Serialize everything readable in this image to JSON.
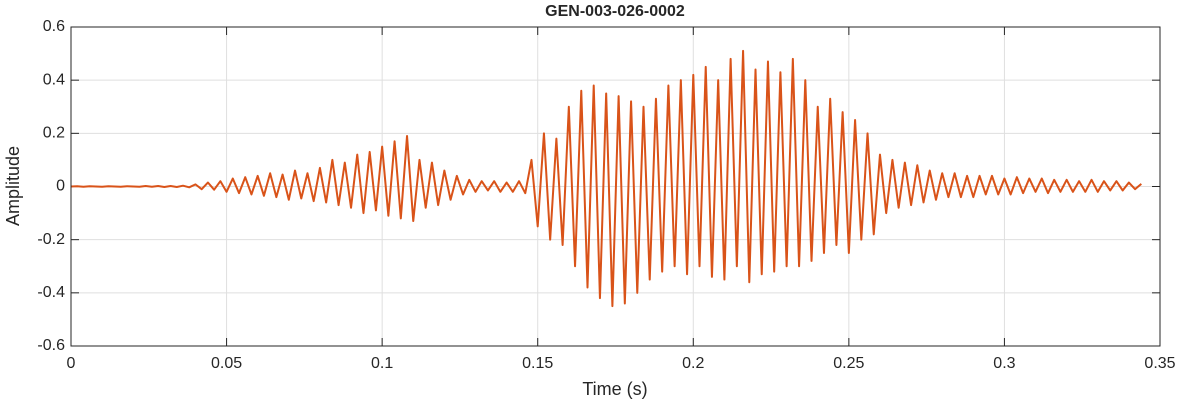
{
  "chart_data": {
    "type": "line",
    "title": "GEN-003-026-0002",
    "x_label": "Time (s)",
    "y_label": "Amplitude",
    "xlim": [
      0,
      0.35
    ],
    "xticks": [
      0,
      0.05,
      0.1,
      0.15,
      0.2,
      0.25,
      0.3,
      0.35
    ],
    "ylim": [
      -0.6,
      0.6
    ],
    "yticks": [
      -0.6,
      -0.4,
      -0.2,
      0,
      0.2,
      0.4,
      0.6
    ],
    "grid": true,
    "series": [
      {
        "color": "#D95319",
        "x": [
          0,
          0.002,
          0.004,
          0.006,
          0.008,
          0.01,
          0.012,
          0.014,
          0.016,
          0.018,
          0.02,
          0.022,
          0.024,
          0.026,
          0.028,
          0.03,
          0.032,
          0.034,
          0.036,
          0.038,
          0.04,
          0.042,
          0.044,
          0.046,
          0.048,
          0.05,
          0.052,
          0.054,
          0.056,
          0.058,
          0.06,
          0.062,
          0.064,
          0.066,
          0.068,
          0.07,
          0.072,
          0.074,
          0.076,
          0.078,
          0.08,
          0.082,
          0.084,
          0.086,
          0.088,
          0.09,
          0.092,
          0.094,
          0.096,
          0.098,
          0.1,
          0.102,
          0.104,
          0.106,
          0.108,
          0.11,
          0.112,
          0.114,
          0.116,
          0.118,
          0.12,
          0.122,
          0.124,
          0.126,
          0.128,
          0.13,
          0.132,
          0.134,
          0.136,
          0.138,
          0.14,
          0.142,
          0.144,
          0.146,
          0.148,
          0.15,
          0.152,
          0.154,
          0.156,
          0.158,
          0.16,
          0.162,
          0.164,
          0.166,
          0.168,
          0.17,
          0.172,
          0.174,
          0.176,
          0.178,
          0.18,
          0.182,
          0.184,
          0.186,
          0.188,
          0.19,
          0.192,
          0.194,
          0.196,
          0.198,
          0.2,
          0.202,
          0.204,
          0.206,
          0.208,
          0.21,
          0.212,
          0.214,
          0.216,
          0.218,
          0.22,
          0.222,
          0.224,
          0.226,
          0.228,
          0.23,
          0.232,
          0.234,
          0.236,
          0.238,
          0.24,
          0.242,
          0.244,
          0.246,
          0.248,
          0.25,
          0.252,
          0.254,
          0.256,
          0.258,
          0.26,
          0.262,
          0.264,
          0.266,
          0.268,
          0.27,
          0.272,
          0.274,
          0.276,
          0.278,
          0.28,
          0.282,
          0.284,
          0.286,
          0.288,
          0.29,
          0.292,
          0.294,
          0.296,
          0.298,
          0.3,
          0.302,
          0.304,
          0.306,
          0.308,
          0.31,
          0.312,
          0.314,
          0.316,
          0.318,
          0.32,
          0.322,
          0.324,
          0.326,
          0.328,
          0.33,
          0.332,
          0.334,
          0.336,
          0.338,
          0.34,
          0.342,
          0.344
        ],
        "values": [
          0,
          0.001,
          -0.001,
          0.001,
          0,
          -0.001,
          0.001,
          0,
          -0.001,
          0.001,
          0,
          -0.001,
          0.002,
          -0.001,
          0.002,
          -0.002,
          0.002,
          -0.002,
          0.003,
          -0.003,
          0.008,
          -0.01,
          0.015,
          -0.012,
          0.02,
          -0.02,
          0.03,
          -0.025,
          0.035,
          -0.03,
          0.04,
          -0.035,
          0.05,
          -0.04,
          0.045,
          -0.05,
          0.06,
          -0.045,
          0.05,
          -0.055,
          0.07,
          -0.06,
          0.1,
          -0.07,
          0.09,
          -0.08,
          0.12,
          -0.1,
          0.13,
          -0.09,
          0.15,
          -0.11,
          0.17,
          -0.12,
          0.19,
          -0.13,
          0.1,
          -0.08,
          0.09,
          -0.07,
          0.06,
          -0.05,
          0.04,
          -0.03,
          0.025,
          -0.02,
          0.02,
          -0.015,
          0.02,
          -0.02,
          0.015,
          -0.02,
          0.02,
          -0.025,
          0.1,
          -0.15,
          0.2,
          -0.2,
          0.18,
          -0.22,
          0.3,
          -0.3,
          0.36,
          -0.38,
          0.38,
          -0.42,
          0.35,
          -0.45,
          0.34,
          -0.44,
          0.32,
          -0.4,
          0.3,
          -0.35,
          0.33,
          -0.32,
          0.38,
          -0.3,
          0.4,
          -0.33,
          0.42,
          -0.3,
          0.45,
          -0.34,
          0.4,
          -0.35,
          0.48,
          -0.3,
          0.51,
          -0.36,
          0.44,
          -0.33,
          0.47,
          -0.32,
          0.43,
          -0.3,
          0.48,
          -0.3,
          0.4,
          -0.28,
          0.3,
          -0.25,
          0.33,
          -0.22,
          0.28,
          -0.25,
          0.25,
          -0.2,
          0.2,
          -0.18,
          0.12,
          -0.1,
          0.1,
          -0.08,
          0.09,
          -0.07,
          0.08,
          -0.06,
          0.06,
          -0.05,
          0.05,
          -0.04,
          0.05,
          -0.04,
          0.04,
          -0.04,
          0.04,
          -0.03,
          0.04,
          -0.03,
          0.03,
          -0.03,
          0.035,
          -0.025,
          0.03,
          -0.02,
          0.03,
          -0.025,
          0.025,
          -0.02,
          0.025,
          -0.02,
          0.02,
          -0.02,
          0.025,
          -0.02,
          0.02,
          -0.015,
          0.02,
          -0.015,
          0.015,
          -0.01,
          0.01
        ]
      }
    ]
  }
}
